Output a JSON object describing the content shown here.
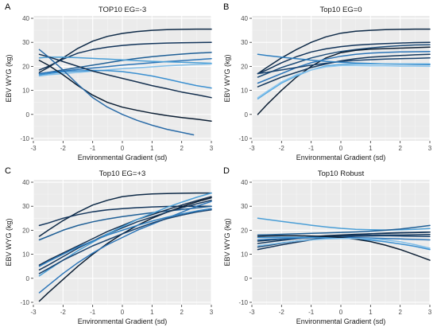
{
  "chart_data": [
    {
      "panel_label": "A",
      "title": "TOP10 EG=-3",
      "type": "line",
      "xlabel": "Environmental Gradient (sd)",
      "ylabel": "EBV WYG (kg)",
      "xlim": [
        -3,
        3
      ],
      "ylim": [
        -11,
        41
      ],
      "xticks": [
        -3,
        -2,
        -1,
        0,
        1,
        2,
        3
      ],
      "yticks": [
        -10,
        0,
        10,
        20,
        30,
        40
      ],
      "grid": true,
      "legend": "none",
      "x": [
        -2.8,
        -2.5,
        -2,
        -1.5,
        -1,
        -0.5,
        0,
        0.5,
        1,
        1.5,
        2,
        2.5,
        3
      ],
      "series": [
        {
          "color": "#0e2a47",
          "values": [
            17.5,
            19.5,
            23.5,
            27.5,
            30.5,
            32.5,
            33.7,
            34.5,
            35,
            35.3,
            35.4,
            35.5,
            35.5
          ]
        },
        {
          "color": "#12345a",
          "values": [
            18.5,
            20,
            23,
            25.5,
            27,
            28,
            28.7,
            29.2,
            29.5,
            29.7,
            29.8,
            29.9,
            30
          ]
        },
        {
          "color": "#1f5f96",
          "values": [
            17,
            17.5,
            18.5,
            19.5,
            20.5,
            21.5,
            22.5,
            23.3,
            24,
            24.6,
            25.1,
            25.5,
            25.8
          ]
        },
        {
          "color": "#2c75b8",
          "values": [
            17,
            17.5,
            18,
            18.7,
            19.3,
            19.9,
            20.5,
            21,
            21.5,
            22,
            22.4,
            22.8,
            23.2
          ]
        },
        {
          "color": "#4a9ed6",
          "values": [
            23.5,
            23.8,
            23.8,
            23.6,
            23.3,
            23,
            22.7,
            22.4,
            22.1,
            21.9,
            21.7,
            21.5,
            21.3
          ]
        },
        {
          "color": "#7fbde8",
          "values": [
            16,
            16.5,
            17,
            17.5,
            18,
            18.5,
            19,
            19.4,
            19.8,
            20.2,
            20.5,
            20.8,
            21
          ]
        },
        {
          "color": "#3a8fd0",
          "values": [
            16.5,
            17,
            17.7,
            18.1,
            18.3,
            18.2,
            17.8,
            17,
            16,
            14.7,
            13.3,
            12,
            11
          ]
        },
        {
          "color": "#15304f",
          "values": [
            25,
            24,
            22,
            20,
            18,
            16.5,
            15,
            13.5,
            12,
            10.7,
            9.3,
            8.2,
            7
          ]
        },
        {
          "color": "#0b1e33",
          "values": [
            22.5,
            20.5,
            16.5,
            12,
            8,
            5,
            3,
            1.7,
            0.5,
            -0.5,
            -1.3,
            -2,
            -2.8
          ]
        },
        {
          "color": "#2b6ca8",
          "x": [
            -2.8,
            -2.5,
            -2,
            -1.5,
            -1,
            -0.5,
            0,
            0.5,
            1,
            1.5,
            2,
            2.4
          ],
          "values": [
            27,
            24,
            18.5,
            12.5,
            7,
            3,
            0,
            -2.5,
            -4.5,
            -6.2,
            -7.5,
            -8.5
          ]
        }
      ]
    },
    {
      "panel_label": "B",
      "title": "Top10 EG=0",
      "type": "line",
      "xlabel": "Environmental Gradient (sd)",
      "ylabel": "EBV WYG (kg)",
      "xlim": [
        -3,
        3
      ],
      "ylim": [
        -11,
        41
      ],
      "xticks": [
        -3,
        -2,
        -1,
        0,
        1,
        2,
        3
      ],
      "yticks": [
        -10,
        0,
        10,
        20,
        30,
        40
      ],
      "grid": true,
      "legend": "none",
      "x": [
        -2.8,
        -2.5,
        -2,
        -1.5,
        -1,
        -0.5,
        0,
        0.5,
        1,
        1.5,
        2,
        2.5,
        3
      ],
      "series": [
        {
          "color": "#0e2a47",
          "values": [
            17,
            19.5,
            23.5,
            27,
            30,
            32.3,
            33.8,
            34.6,
            35,
            35.3,
            35.4,
            35.5,
            35.5
          ]
        },
        {
          "color": "#12345a",
          "values": [
            17,
            18.5,
            21.5,
            24,
            26,
            27.3,
            28.2,
            28.8,
            29.2,
            29.5,
            29.7,
            29.9,
            30
          ]
        },
        {
          "color": "#1f4e7a",
          "values": [
            15.5,
            17,
            19.5,
            21.5,
            23.5,
            25,
            26.2,
            27,
            27.7,
            28.2,
            28.6,
            28.9,
            29
          ]
        },
        {
          "color": "#0b1e33",
          "values": [
            0,
            4,
            10,
            15.5,
            20,
            23.5,
            25.7,
            26.7,
            27.2,
            27.4,
            27.6,
            27.8,
            28
          ]
        },
        {
          "color": "#2c75b8",
          "values": [
            13,
            14.5,
            17,
            19.5,
            21.5,
            23,
            24.2,
            25,
            25.5,
            25.8,
            26,
            26.1,
            26.2
          ]
        },
        {
          "color": "#16395e",
          "values": [
            11.5,
            13,
            15.5,
            17.5,
            19.5,
            21,
            22.3,
            23.2,
            23.8,
            24.2,
            24.5,
            24.8,
            25
          ]
        },
        {
          "color": "#1a4470",
          "values": [
            17,
            17.5,
            18.5,
            19.5,
            20.5,
            21.3,
            22,
            22.5,
            22.8,
            23,
            23.2,
            23.3,
            23.5
          ]
        },
        {
          "color": "#2f7fc0",
          "values": [
            25,
            24.5,
            23.8,
            23.2,
            22.6,
            22.1,
            21.7,
            21.4,
            21.2,
            21,
            20.9,
            20.8,
            20.7
          ]
        },
        {
          "color": "#5aaae0",
          "values": [
            6.5,
            9,
            13,
            16,
            18.5,
            20.2,
            20.8,
            21,
            21,
            21,
            21,
            21,
            21
          ]
        },
        {
          "color": "#8cc6ee",
          "values": [
            7,
            9.5,
            13.5,
            16.5,
            18.5,
            19.8,
            20.3,
            20.3,
            20.2,
            20.2,
            20.1,
            20.1,
            20
          ]
        }
      ]
    },
    {
      "panel_label": "C",
      "title": "Top10 EG=+3",
      "type": "line",
      "xlabel": "Environmental Gradient (sd)",
      "ylabel": "EBV WYG (kg)",
      "xlim": [
        -3,
        3
      ],
      "ylim": [
        -11,
        41
      ],
      "xticks": [
        -3,
        -2,
        -1,
        0,
        1,
        2,
        3
      ],
      "yticks": [
        -10,
        0,
        10,
        20,
        30,
        40
      ],
      "grid": true,
      "legend": "none",
      "x": [
        -2.8,
        -2.5,
        -2,
        -1.5,
        -1,
        -0.5,
        0,
        0.5,
        1,
        1.5,
        2,
        2.5,
        3
      ],
      "series": [
        {
          "color": "#0e2a47",
          "values": [
            17.5,
            20,
            24,
            27.5,
            30.5,
            32.5,
            34,
            34.7,
            35.1,
            35.3,
            35.4,
            35.5,
            35.5
          ]
        },
        {
          "color": "#12345a",
          "values": [
            22,
            23,
            25,
            26.5,
            27.7,
            28.5,
            29,
            29.4,
            29.7,
            29.9,
            30,
            30,
            30
          ]
        },
        {
          "color": "#1f5f96",
          "values": [
            16,
            17.5,
            20,
            22,
            23.5,
            24.7,
            25.7,
            26.5,
            27.3,
            28,
            28.6,
            29.3,
            30
          ]
        },
        {
          "color": "#0b1e33",
          "values": [
            -9.5,
            -6,
            -0.5,
            5,
            10,
            14.5,
            18.5,
            22,
            25,
            27.5,
            29.8,
            31.8,
            33.5
          ]
        },
        {
          "color": "#2c75b8",
          "values": [
            -6,
            -3,
            2,
            6.5,
            10.5,
            14,
            17,
            20,
            22.5,
            25,
            27.5,
            30,
            32
          ]
        },
        {
          "color": "#15304f",
          "values": [
            5.5,
            7.5,
            10.5,
            13.5,
            16.5,
            19.5,
            22,
            24.5,
            26.5,
            28.5,
            30.5,
            32.3,
            34
          ]
        },
        {
          "color": "#16395e",
          "values": [
            3.5,
            5.5,
            9,
            12.5,
            15.5,
            18.5,
            21,
            23.5,
            25.5,
            27.5,
            29.3,
            31,
            32.5
          ]
        },
        {
          "color": "#4a9ed6",
          "values": [
            1,
            3.5,
            7.5,
            11.5,
            15,
            18.5,
            21.5,
            24.5,
            27,
            29.5,
            31.7,
            33.7,
            35.5
          ]
        },
        {
          "color": "#1a4470",
          "values": [
            2,
            4,
            7.5,
            10.5,
            13.5,
            16,
            18.5,
            20.8,
            23,
            24.8,
            26.3,
            27.6,
            28.5
          ]
        },
        {
          "color": "#2f7fc0",
          "values": [
            5,
            7,
            10,
            13,
            15.5,
            18,
            20,
            22,
            23.8,
            25.4,
            26.8,
            28,
            29
          ]
        }
      ]
    },
    {
      "panel_label": "D",
      "title": "Top10 Robust",
      "type": "line",
      "xlabel": "Environmental Gradient (sd)",
      "ylabel": "EBV WYG (kg)",
      "xlim": [
        -3,
        3
      ],
      "ylim": [
        -11,
        41
      ],
      "xticks": [
        -3,
        -2,
        -1,
        0,
        1,
        2,
        3
      ],
      "yticks": [
        -10,
        0,
        10,
        20,
        30,
        40
      ],
      "grid": true,
      "legend": "none",
      "x": [
        -2.8,
        -2.5,
        -2,
        -1.5,
        -1,
        -0.5,
        0,
        0.5,
        1,
        1.5,
        2,
        2.5,
        3
      ],
      "series": [
        {
          "color": "#4a9ed6",
          "values": [
            25,
            24.5,
            23.7,
            22.9,
            22.1,
            21.4,
            20.8,
            20.4,
            20.2,
            20.1,
            20.2,
            20.4,
            20.7
          ]
        },
        {
          "color": "#1f5f96",
          "values": [
            18,
            18.1,
            18.3,
            18.5,
            18.7,
            18.9,
            19.1,
            19.3,
            19.6,
            20,
            20.5,
            21.2,
            22
          ]
        },
        {
          "color": "#0e2a47",
          "values": [
            15.5,
            15.8,
            16.3,
            16.8,
            17.3,
            17.7,
            18,
            18.3,
            18.5,
            18.7,
            18.9,
            19,
            19.2
          ]
        },
        {
          "color": "#12345a",
          "values": [
            12,
            12.7,
            13.9,
            15,
            16,
            16.9,
            17.6,
            18.1,
            18.5,
            18.8,
            19,
            19.1,
            19.2
          ]
        },
        {
          "color": "#16395e",
          "values": [
            14.5,
            15,
            15.8,
            16.5,
            17,
            17.4,
            17.6,
            17.8,
            17.9,
            18,
            18,
            18.1,
            18.2
          ]
        },
        {
          "color": "#1a4470",
          "values": [
            13,
            13.6,
            14.6,
            15.5,
            16.2,
            16.8,
            17.2,
            17.5,
            17.6,
            17.7,
            17.6,
            17.5,
            17.4
          ]
        },
        {
          "color": "#2c75b8",
          "values": [
            16,
            16.2,
            16.5,
            16.7,
            16.9,
            17,
            17,
            16.9,
            16.8,
            16.6,
            16.4,
            16.2,
            16
          ]
        },
        {
          "color": "#3a8fd0",
          "values": [
            17,
            17,
            17.1,
            17.1,
            17.1,
            17,
            16.8,
            16.4,
            15.9,
            15.2,
            14.3,
            13.3,
            12
          ]
        },
        {
          "color": "#0b1e33",
          "values": [
            17.5,
            17.6,
            17.7,
            17.7,
            17.6,
            17.4,
            17,
            16.3,
            15.3,
            13.8,
            12,
            9.8,
            7.5
          ]
        },
        {
          "color": "#7fbde8",
          "values": [
            13.5,
            14,
            14.8,
            15.5,
            16,
            16.4,
            16.6,
            16.6,
            16.4,
            16,
            15.2,
            14,
            12.5
          ]
        }
      ]
    }
  ]
}
